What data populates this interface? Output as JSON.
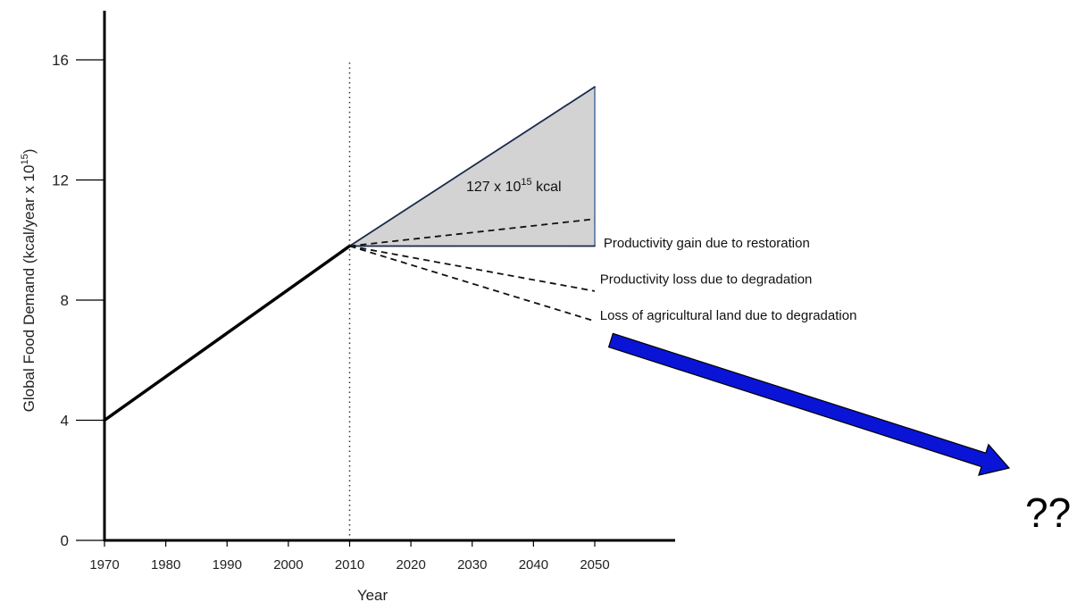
{
  "chart_data": {
    "type": "line",
    "title": "",
    "xlabel": "Year",
    "ylabel_main": "Global Food Demand (kcal/year x 10",
    "ylabel_exp": "15",
    "ylabel_close": ")",
    "xlim": [
      1970,
      2050
    ],
    "ylim": [
      0,
      16
    ],
    "x_ticks": [
      "1970",
      "1980",
      "1990",
      "2000",
      "2010",
      "2020",
      "2030",
      "2040",
      "2050"
    ],
    "y_ticks": [
      "0",
      "4",
      "8",
      "12",
      "16"
    ],
    "reference_line_x": 2010,
    "series": [
      {
        "style": "solid",
        "x": [
          1970,
          2010
        ],
        "y": [
          4,
          9.8
        ]
      },
      {
        "style": "solid-blue",
        "x": [
          2010,
          2050
        ],
        "y": [
          9.8,
          15.1
        ]
      },
      {
        "style": "solid-blue",
        "x": [
          2010,
          2050
        ],
        "y": [
          9.8,
          9.8
        ]
      },
      {
        "style": "dashed",
        "x": [
          2010,
          2050
        ],
        "y": [
          9.8,
          10.7
        ]
      },
      {
        "style": "dashed",
        "x": [
          2010,
          2050
        ],
        "y": [
          9.8,
          8.3
        ]
      },
      {
        "style": "dashed",
        "x": [
          2010,
          2050
        ],
        "y": [
          9.8,
          7.3
        ]
      }
    ],
    "shaded_area": {
      "x": [
        2010,
        2050,
        2050
      ],
      "y": [
        9.8,
        15.1,
        9.8
      ],
      "label_main": "127 x 10",
      "label_exp": "15",
      "label_unit": " kcal"
    },
    "annotations": [
      {
        "text": "Productivity gain due to restoration",
        "x": 2051,
        "y": 9.9
      },
      {
        "text": "Productivity loss due to degradation",
        "x": 2050.4,
        "y": 8.7
      },
      {
        "text": "Loss of agricultural land due to degradation",
        "x": 2050.4,
        "y": 7.5
      }
    ],
    "arrow": {
      "color": "#0a14d6"
    },
    "question_mark": "??",
    "colors": {
      "axis": "#000000",
      "fill": "#d3d3d3",
      "blue_line": "#4a6a9a",
      "arrow": "#0a14d6"
    }
  }
}
